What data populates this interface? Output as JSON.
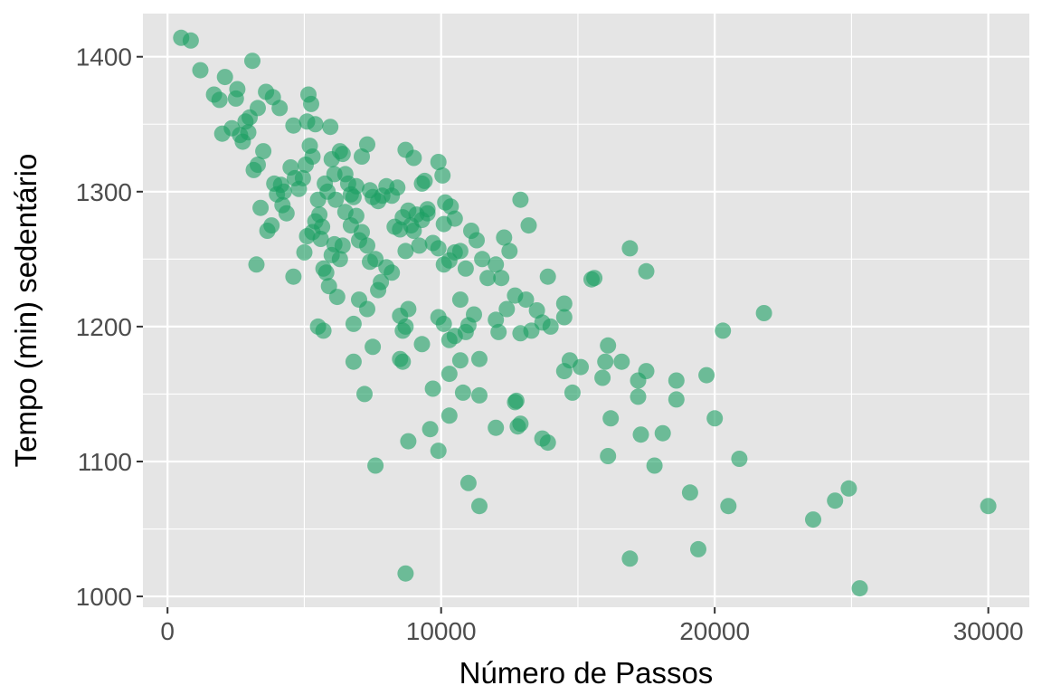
{
  "chart_data": {
    "type": "scatter",
    "title": "",
    "xlabel": "Número de Passos",
    "ylabel": "Tempo (min) sedentário",
    "xlim": [
      -900,
      31500
    ],
    "ylim": [
      992,
      1432
    ],
    "x_ticks": [
      0,
      10000,
      20000,
      30000
    ],
    "x_tick_labels": [
      "0",
      "10000",
      "20000",
      "30000"
    ],
    "y_ticks": [
      1000,
      1100,
      1200,
      1300,
      1400
    ],
    "y_tick_labels": [
      "1000",
      "1100",
      "1200",
      "1300",
      "1400"
    ],
    "grid": true,
    "legend": "none",
    "colors": {
      "point": "#1b9e63",
      "panel": "#e5e5e5",
      "grid": "#ffffff"
    },
    "series": [
      {
        "points": [
          [
            500,
            1414
          ],
          [
            850,
            1412
          ],
          [
            1200,
            1390
          ],
          [
            1700,
            1372
          ],
          [
            1900,
            1368
          ],
          [
            2100,
            1385
          ],
          [
            2000,
            1343
          ],
          [
            2350,
            1347
          ],
          [
            2550,
            1376
          ],
          [
            2500,
            1369
          ],
          [
            2650,
            1342
          ],
          [
            2750,
            1337
          ],
          [
            2850,
            1352
          ],
          [
            3000,
            1355
          ],
          [
            3100,
            1397
          ],
          [
            3300,
            1362
          ],
          [
            2950,
            1344
          ],
          [
            3150,
            1316
          ],
          [
            3300,
            1320
          ],
          [
            3500,
            1330
          ],
          [
            3600,
            1374
          ],
          [
            3850,
            1370
          ],
          [
            4100,
            1362
          ],
          [
            3400,
            1288
          ],
          [
            3250,
            1246
          ],
          [
            3650,
            1271
          ],
          [
            3800,
            1275
          ],
          [
            3900,
            1306
          ],
          [
            4000,
            1298
          ],
          [
            4150,
            1305
          ],
          [
            4250,
            1300
          ],
          [
            4350,
            1284
          ],
          [
            4500,
            1318
          ],
          [
            4650,
            1310
          ],
          [
            4800,
            1302
          ],
          [
            4600,
            1349
          ],
          [
            4950,
            1310
          ],
          [
            5050,
            1320
          ],
          [
            5200,
            1334
          ],
          [
            5300,
            1326
          ],
          [
            5150,
            1372
          ],
          [
            5250,
            1365
          ],
          [
            5100,
            1352
          ],
          [
            5400,
            1350
          ],
          [
            5950,
            1348
          ],
          [
            5500,
            1294
          ],
          [
            5550,
            1283
          ],
          [
            5650,
            1274
          ],
          [
            5750,
            1306
          ],
          [
            5850,
            1300
          ],
          [
            6000,
            1324
          ],
          [
            6100,
            1313
          ],
          [
            6150,
            1294
          ],
          [
            6300,
            1330
          ],
          [
            6400,
            1328
          ],
          [
            6500,
            1313
          ],
          [
            6600,
            1306
          ],
          [
            6700,
            1298
          ],
          [
            6800,
            1296
          ],
          [
            6900,
            1304
          ],
          [
            7100,
            1326
          ],
          [
            7300,
            1335
          ],
          [
            7400,
            1301
          ],
          [
            7500,
            1296
          ],
          [
            7700,
            1293
          ],
          [
            7850,
            1297
          ],
          [
            8000,
            1304
          ],
          [
            8200,
            1297
          ],
          [
            8400,
            1303
          ],
          [
            8700,
            1331
          ],
          [
            9000,
            1325
          ],
          [
            9300,
            1306
          ],
          [
            9400,
            1308
          ],
          [
            8800,
            1286
          ],
          [
            9100,
            1283
          ],
          [
            9500,
            1287
          ],
          [
            9900,
            1322
          ],
          [
            10050,
            1312
          ],
          [
            10150,
            1292
          ],
          [
            10350,
            1289
          ],
          [
            10500,
            1280
          ],
          [
            10100,
            1276
          ],
          [
            4200,
            1290
          ],
          [
            4600,
            1237
          ],
          [
            5000,
            1255
          ],
          [
            5100,
            1267
          ],
          [
            5300,
            1270
          ],
          [
            5400,
            1278
          ],
          [
            5600,
            1265
          ],
          [
            5700,
            1243
          ],
          [
            5800,
            1240
          ],
          [
            6000,
            1253
          ],
          [
            6100,
            1261
          ],
          [
            6300,
            1250
          ],
          [
            6400,
            1260
          ],
          [
            6500,
            1285
          ],
          [
            6700,
            1275
          ],
          [
            6900,
            1282
          ],
          [
            7000,
            1264
          ],
          [
            7100,
            1270
          ],
          [
            7300,
            1260
          ],
          [
            7400,
            1248
          ],
          [
            7600,
            1250
          ],
          [
            7700,
            1227
          ],
          [
            7800,
            1233
          ],
          [
            8000,
            1244
          ],
          [
            8200,
            1240
          ],
          [
            8300,
            1274
          ],
          [
            8500,
            1272
          ],
          [
            8600,
            1281
          ],
          [
            8700,
            1256
          ],
          [
            8900,
            1275
          ],
          [
            9000,
            1271
          ],
          [
            9200,
            1260
          ],
          [
            9300,
            1279
          ],
          [
            9500,
            1284
          ],
          [
            9700,
            1262
          ],
          [
            9900,
            1258
          ],
          [
            10100,
            1246
          ],
          [
            10300,
            1249
          ],
          [
            10500,
            1255
          ],
          [
            10700,
            1256
          ],
          [
            10900,
            1243
          ],
          [
            11100,
            1271
          ],
          [
            11300,
            1264
          ],
          [
            11500,
            1250
          ],
          [
            11700,
            1236
          ],
          [
            12000,
            1246
          ],
          [
            12200,
            1236
          ],
          [
            12300,
            1266
          ],
          [
            12500,
            1256
          ],
          [
            12900,
            1294
          ],
          [
            13200,
            1275
          ],
          [
            5500,
            1200
          ],
          [
            5700,
            1197
          ],
          [
            5900,
            1230
          ],
          [
            6200,
            1222
          ],
          [
            6800,
            1202
          ],
          [
            7000,
            1220
          ],
          [
            7300,
            1213
          ],
          [
            7500,
            1185
          ],
          [
            6800,
            1174
          ],
          [
            7200,
            1150
          ],
          [
            7600,
            1097
          ],
          [
            8500,
            1208
          ],
          [
            8600,
            1197
          ],
          [
            8700,
            1200
          ],
          [
            8800,
            1213
          ],
          [
            8500,
            1176
          ],
          [
            8600,
            1174
          ],
          [
            9300,
            1187
          ],
          [
            9700,
            1154
          ],
          [
            8800,
            1115
          ],
          [
            9600,
            1124
          ],
          [
            9900,
            1108
          ],
          [
            8700,
            1017
          ],
          [
            9900,
            1207
          ],
          [
            10100,
            1202
          ],
          [
            10300,
            1190
          ],
          [
            10500,
            1193
          ],
          [
            10700,
            1220
          ],
          [
            10900,
            1196
          ],
          [
            11000,
            1201
          ],
          [
            11200,
            1209
          ],
          [
            11400,
            1176
          ],
          [
            10700,
            1175
          ],
          [
            10300,
            1165
          ],
          [
            10800,
            1151
          ],
          [
            11400,
            1149
          ],
          [
            10300,
            1134
          ],
          [
            11000,
            1084
          ],
          [
            11400,
            1067
          ],
          [
            12000,
            1205
          ],
          [
            12100,
            1196
          ],
          [
            12400,
            1213
          ],
          [
            12700,
            1223
          ],
          [
            12900,
            1195
          ],
          [
            13100,
            1220
          ],
          [
            13300,
            1197
          ],
          [
            13500,
            1212
          ],
          [
            13700,
            1203
          ],
          [
            13900,
            1237
          ],
          [
            14000,
            1200
          ],
          [
            14500,
            1217
          ],
          [
            14500,
            1207
          ],
          [
            14500,
            1167
          ],
          [
            14700,
            1175
          ],
          [
            15100,
            1170
          ],
          [
            14800,
            1151
          ],
          [
            12700,
            1144
          ],
          [
            12750,
            1145
          ],
          [
            12800,
            1126
          ],
          [
            12900,
            1128
          ],
          [
            12000,
            1125
          ],
          [
            13700,
            1117
          ],
          [
            13900,
            1114
          ],
          [
            15500,
            1235
          ],
          [
            15600,
            1236
          ],
          [
            15900,
            1162
          ],
          [
            16000,
            1174
          ],
          [
            16100,
            1186
          ],
          [
            16200,
            1132
          ],
          [
            16100,
            1104
          ],
          [
            16600,
            1174
          ],
          [
            16900,
            1258
          ],
          [
            17200,
            1148
          ],
          [
            17200,
            1160
          ],
          [
            17300,
            1120
          ],
          [
            17500,
            1167
          ],
          [
            17500,
            1241
          ],
          [
            17800,
            1097
          ],
          [
            18100,
            1121
          ],
          [
            18600,
            1160
          ],
          [
            18600,
            1146
          ],
          [
            19100,
            1077
          ],
          [
            19400,
            1035
          ],
          [
            19700,
            1164
          ],
          [
            20000,
            1132
          ],
          [
            20300,
            1197
          ],
          [
            20500,
            1067
          ],
          [
            20900,
            1102
          ],
          [
            21800,
            1210
          ],
          [
            16900,
            1028
          ],
          [
            23600,
            1057
          ],
          [
            24400,
            1071
          ],
          [
            24900,
            1080
          ],
          [
            25300,
            1006
          ],
          [
            30000,
            1067
          ]
        ]
      }
    ]
  }
}
